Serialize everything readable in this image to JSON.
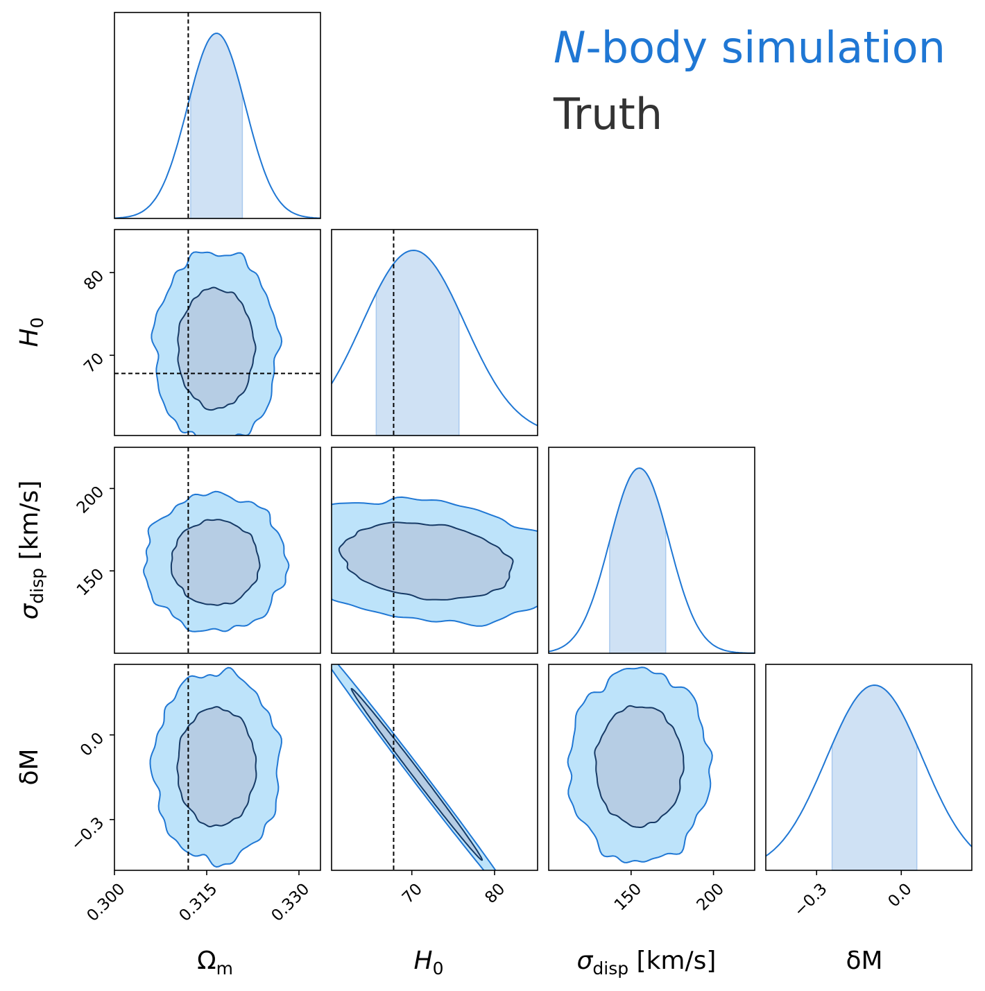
{
  "legend": {
    "nbody_italic": "N",
    "nbody_rest": "-body simulation",
    "truth": "Truth",
    "colors": {
      "nbody": "#1f77d4",
      "truth": "#333333"
    }
  },
  "colors": {
    "line": "#1f77d4",
    "fill_1d": "#cfe1f4",
    "fill_95": "#bde3fa",
    "fill_68": "#b6cde4",
    "contour_68": "#163a66",
    "frame": "#000000",
    "truth_line": "#000000"
  },
  "labels": {
    "omega": "Ωm",
    "omega_main": "Ω",
    "omega_sub": "m",
    "h0": "H0",
    "h0_main": "H",
    "h0_sub": "0",
    "sigma": "σdisp [km/s]",
    "sigma_main": "σ",
    "sigma_sub": "disp",
    "sigma_unit": " [km/s]",
    "dm": "δM"
  },
  "chart_data": {
    "type": "corner",
    "title": "N-body simulation",
    "legend": [
      "N-body simulation",
      "Truth"
    ],
    "parameters": [
      {
        "name": "Ωm",
        "range": [
          0.3,
          0.3335
        ],
        "ticks": [
          "0.300",
          "0.315",
          "0.330"
        ],
        "tick_values": [
          0.3,
          0.315,
          0.33
        ],
        "truth": 0.312,
        "marginal": {
          "mean": 0.3166,
          "sigma": 0.0047,
          "interval": [
            0.3124,
            0.3208
          ]
        }
      },
      {
        "name": "H0",
        "range": [
          60.3,
          85.2
        ],
        "ticks": [
          "70",
          "80"
        ],
        "tick_values": [
          70,
          80
        ],
        "truth": 67.8,
        "marginal": {
          "mean": 70.2,
          "sigma": 6.2,
          "interval": [
            65.7,
            75.7
          ]
        }
      },
      {
        "name": "σdisp [km/s]",
        "range": [
          100,
          225
        ],
        "ticks": [
          "150",
          "200"
        ],
        "tick_values": [
          150,
          200
        ],
        "truth": null,
        "marginal": {
          "mean": 155,
          "sigma": 18,
          "interval": [
            137,
            171
          ]
        }
      },
      {
        "name": "δM",
        "range": [
          -0.48,
          0.25
        ],
        "ticks": [
          "−0.3",
          "0.0"
        ],
        "tick_values": [
          -0.3,
          0.0
        ],
        "truth": null,
        "marginal": {
          "mean": -0.095,
          "sigma": 0.17,
          "interval": [
            -0.245,
            0.055
          ]
        }
      }
    ],
    "pairs": [
      {
        "x": "Ωm",
        "y": "H0",
        "center": [
          0.3165,
          70.8
        ],
        "sigma_x": 0.0041,
        "sigma_y": 4.8,
        "rho": 0.0
      },
      {
        "x": "Ωm",
        "y": "σdisp [km/s]",
        "center": [
          0.3164,
          155
        ],
        "sigma_x": 0.0047,
        "sigma_y": 17.0,
        "rho": 0.0
      },
      {
        "x": "H0",
        "y": "σdisp [km/s]",
        "center": [
          71.8,
          156
        ],
        "sigma_x": 6.8,
        "sigma_y": 15.3,
        "rho": -0.22
      },
      {
        "x": "Ωm",
        "y": "δM",
        "center": [
          0.3166,
          -0.114
        ],
        "sigma_x": 0.0042,
        "sigma_y": 0.138,
        "rho": 0.0
      },
      {
        "x": "H0",
        "y": "δM",
        "center": [
          70.6,
          -0.14
        ],
        "sigma_x": 5.2,
        "sigma_y": 0.2,
        "rho": -0.997
      },
      {
        "x": "σdisp [km/s]",
        "y": "δM",
        "center": [
          155,
          -0.11
        ],
        "sigma_x": 17.5,
        "sigma_y": 0.14,
        "rho": 0.0
      }
    ],
    "contour_levels": [
      "68%",
      "95%"
    ]
  }
}
